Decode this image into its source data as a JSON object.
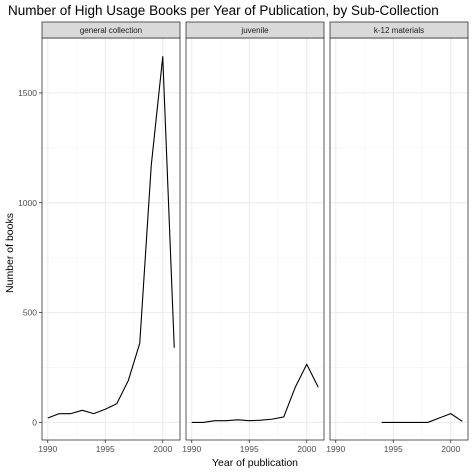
{
  "chart_data": {
    "type": "line",
    "title": "Number of High Usage Books per Year of Publication, by Sub-Collection",
    "xlabel": "Year of publication",
    "ylabel": "Number of books",
    "xlim": [
      1989.5,
      2001.5
    ],
    "ylim": [
      -80,
      1750
    ],
    "x_ticks": [
      1990,
      1995,
      2000
    ],
    "y_ticks": [
      0,
      500,
      1000,
      1500
    ],
    "grid": true,
    "theme": "bw",
    "line_color": "#000000",
    "panels": [
      {
        "name": "general collection",
        "x": [
          1990,
          1991,
          1992,
          1993,
          1994,
          1995,
          1996,
          1997,
          1998,
          1999,
          2000,
          2001
        ],
        "y": [
          20,
          40,
          40,
          55,
          40,
          60,
          85,
          190,
          360,
          1170,
          1665,
          340
        ]
      },
      {
        "name": "juvenile",
        "x": [
          1990,
          1991,
          1992,
          1993,
          1994,
          1995,
          1996,
          1997,
          1998,
          1999,
          2000,
          2001
        ],
        "y": [
          0,
          0,
          8,
          8,
          12,
          8,
          10,
          15,
          25,
          160,
          265,
          160
        ]
      },
      {
        "name": "k-12 materials",
        "x": [
          1994,
          1995,
          1996,
          1997,
          1998,
          1999,
          2000,
          2001
        ],
        "y": [
          0,
          0,
          0,
          0,
          0,
          20,
          40,
          5
        ]
      }
    ]
  }
}
